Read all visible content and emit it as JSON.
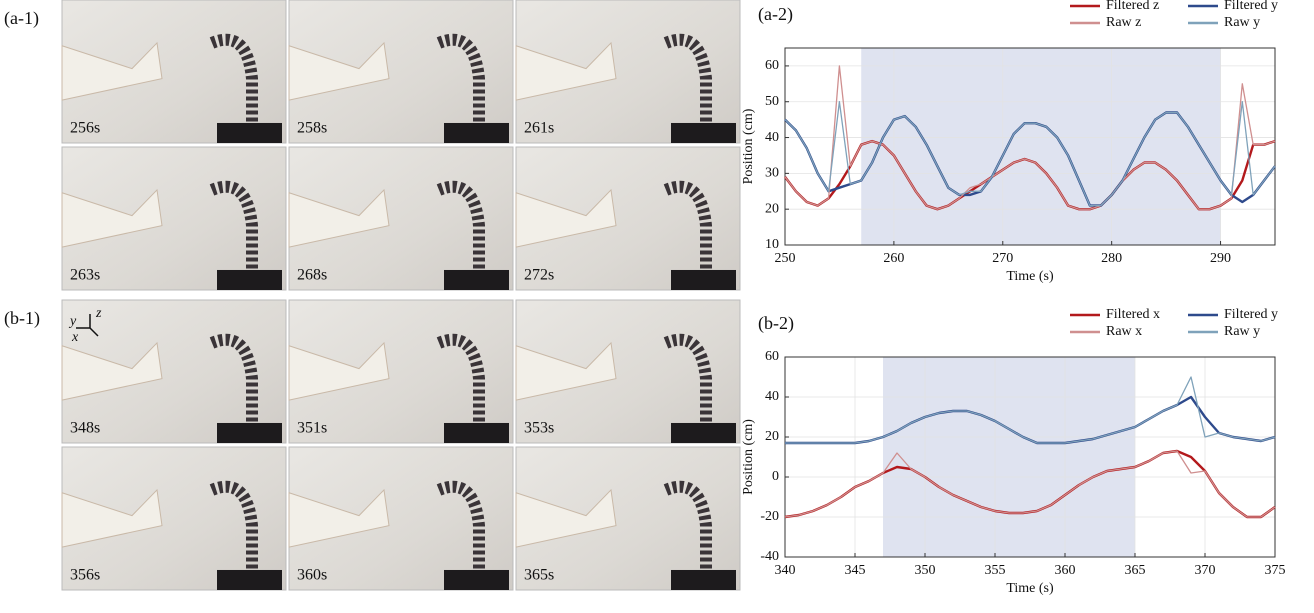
{
  "photo_panels": [
    {
      "label": "(a-1)",
      "frames": [
        "256s",
        "258s",
        "261s",
        "263s",
        "268s",
        "272s"
      ]
    },
    {
      "label": "(b-1)",
      "frames": [
        "348s",
        "351s",
        "353s",
        "356s",
        "360s",
        "365s"
      ],
      "axis_labels": [
        "y",
        "z",
        "x"
      ]
    }
  ],
  "chart_data": [
    {
      "type": "line",
      "panel_label": "(a-2)",
      "x_label": "Time (s)",
      "y_label": "Position (cm)",
      "x": [
        250,
        251,
        252,
        253,
        254,
        255,
        256,
        257,
        258,
        259,
        260,
        261,
        262,
        263,
        264,
        265,
        266,
        267,
        268,
        269,
        270,
        271,
        272,
        273,
        274,
        275,
        276,
        277,
        278,
        279,
        280,
        281,
        282,
        283,
        284,
        285,
        286,
        287,
        288,
        289,
        290,
        291,
        292,
        293,
        294,
        295
      ],
      "xlim": [
        250,
        295
      ],
      "xticks": [
        250,
        260,
        270,
        280,
        290
      ],
      "ylim": [
        10,
        65
      ],
      "yticks": [
        10,
        20,
        30,
        40,
        50,
        60
      ],
      "grid": true,
      "highlight": [
        257,
        290
      ],
      "highlight_color": "#dfe3f0",
      "legend": "top-right",
      "series": [
        {
          "name": "Filtered z",
          "color": "#b3191c",
          "width": 2.4,
          "values": [
            29,
            25,
            22,
            21,
            23,
            27,
            32,
            38,
            39,
            38,
            35,
            30,
            25,
            21,
            20,
            21,
            23,
            25,
            27,
            29,
            31,
            33,
            34,
            33,
            30,
            26,
            21,
            20,
            20,
            21,
            24,
            28,
            31,
            33,
            33,
            31,
            28,
            24,
            20,
            20,
            21,
            23,
            28,
            38,
            38,
            39
          ]
        },
        {
          "name": "Filtered y",
          "color": "#2e4a8c",
          "width": 2.4,
          "values": [
            45,
            42,
            37,
            30,
            25,
            26,
            27,
            28,
            33,
            40,
            45,
            46,
            43,
            38,
            32,
            26,
            24,
            24,
            25,
            29,
            35,
            41,
            44,
            44,
            43,
            40,
            35,
            28,
            21,
            21,
            24,
            28,
            34,
            40,
            45,
            47,
            47,
            43,
            38,
            33,
            28,
            24,
            22,
            24,
            28,
            32
          ]
        },
        {
          "name": "Raw z",
          "color": "#cf8f8f",
          "width": 1.3,
          "values": [
            29,
            25,
            22,
            21,
            23,
            60,
            32,
            38,
            39,
            38,
            35,
            30,
            25,
            21,
            20,
            21,
            23,
            26,
            27,
            29,
            31,
            33,
            34,
            33,
            30,
            26,
            21,
            20,
            20,
            21,
            24,
            28,
            31,
            33,
            33,
            31,
            28,
            24,
            20,
            20,
            21,
            23,
            55,
            38,
            38,
            39
          ]
        },
        {
          "name": "Raw y",
          "color": "#7fa2ba",
          "width": 1.3,
          "values": [
            45,
            42,
            37,
            30,
            25,
            50,
            27,
            28,
            33,
            40,
            45,
            46,
            43,
            38,
            32,
            26,
            24,
            25,
            25,
            29,
            35,
            41,
            44,
            44,
            43,
            40,
            35,
            28,
            21,
            21,
            24,
            28,
            34,
            40,
            45,
            47,
            47,
            43,
            38,
            33,
            28,
            24,
            50,
            24,
            28,
            32
          ]
        }
      ]
    },
    {
      "type": "line",
      "panel_label": "(b-2)",
      "x_label": "Time (s)",
      "y_label": "Position (cm)",
      "x": [
        340,
        341,
        342,
        343,
        344,
        345,
        346,
        347,
        348,
        349,
        350,
        351,
        352,
        353,
        354,
        355,
        356,
        357,
        358,
        359,
        360,
        361,
        362,
        363,
        364,
        365,
        366,
        367,
        368,
        369,
        370,
        371,
        372,
        373,
        374,
        375
      ],
      "xlim": [
        340,
        375
      ],
      "xticks": [
        340,
        345,
        350,
        355,
        360,
        365,
        370,
        375
      ],
      "ylim": [
        -40,
        60
      ],
      "yticks": [
        -40,
        -20,
        0,
        20,
        40,
        60
      ],
      "grid": true,
      "highlight": [
        347,
        365
      ],
      "highlight_color": "#dfe3f0",
      "legend": "top-right",
      "series": [
        {
          "name": "Filtered x",
          "color": "#b3191c",
          "width": 2.4,
          "values": [
            -20,
            -19,
            -17,
            -14,
            -10,
            -5,
            -2,
            2,
            5,
            4,
            0,
            -5,
            -9,
            -12,
            -15,
            -17,
            -18,
            -18,
            -17,
            -14,
            -9,
            -4,
            0,
            3,
            4,
            5,
            8,
            12,
            13,
            10,
            3,
            -8,
            -15,
            -20,
            -20,
            -15
          ]
        },
        {
          "name": "Filtered y",
          "color": "#2e4a8c",
          "width": 2.4,
          "values": [
            17,
            17,
            17,
            17,
            17,
            17,
            18,
            20,
            23,
            27,
            30,
            32,
            33,
            33,
            31,
            28,
            24,
            20,
            17,
            17,
            17,
            18,
            19,
            21,
            23,
            25,
            29,
            33,
            36,
            40,
            30,
            22,
            20,
            19,
            18,
            20
          ]
        },
        {
          "name": "Raw x",
          "color": "#cf8f8f",
          "width": 1.3,
          "values": [
            -20,
            -19,
            -17,
            -14,
            -10,
            -5,
            -2,
            2,
            12,
            4,
            0,
            -5,
            -9,
            -12,
            -15,
            -17,
            -18,
            -18,
            -17,
            -14,
            -9,
            -4,
            0,
            3,
            4,
            5,
            8,
            12,
            13,
            2,
            3,
            -8,
            -15,
            -20,
            -20,
            -15
          ]
        },
        {
          "name": "Raw y",
          "color": "#7fa2ba",
          "width": 1.3,
          "values": [
            17,
            17,
            17,
            17,
            17,
            17,
            18,
            20,
            23,
            27,
            30,
            32,
            33,
            33,
            31,
            28,
            24,
            20,
            17,
            17,
            17,
            18,
            19,
            21,
            23,
            25,
            29,
            33,
            36,
            50,
            20,
            22,
            20,
            19,
            18,
            20
          ]
        }
      ]
    }
  ]
}
